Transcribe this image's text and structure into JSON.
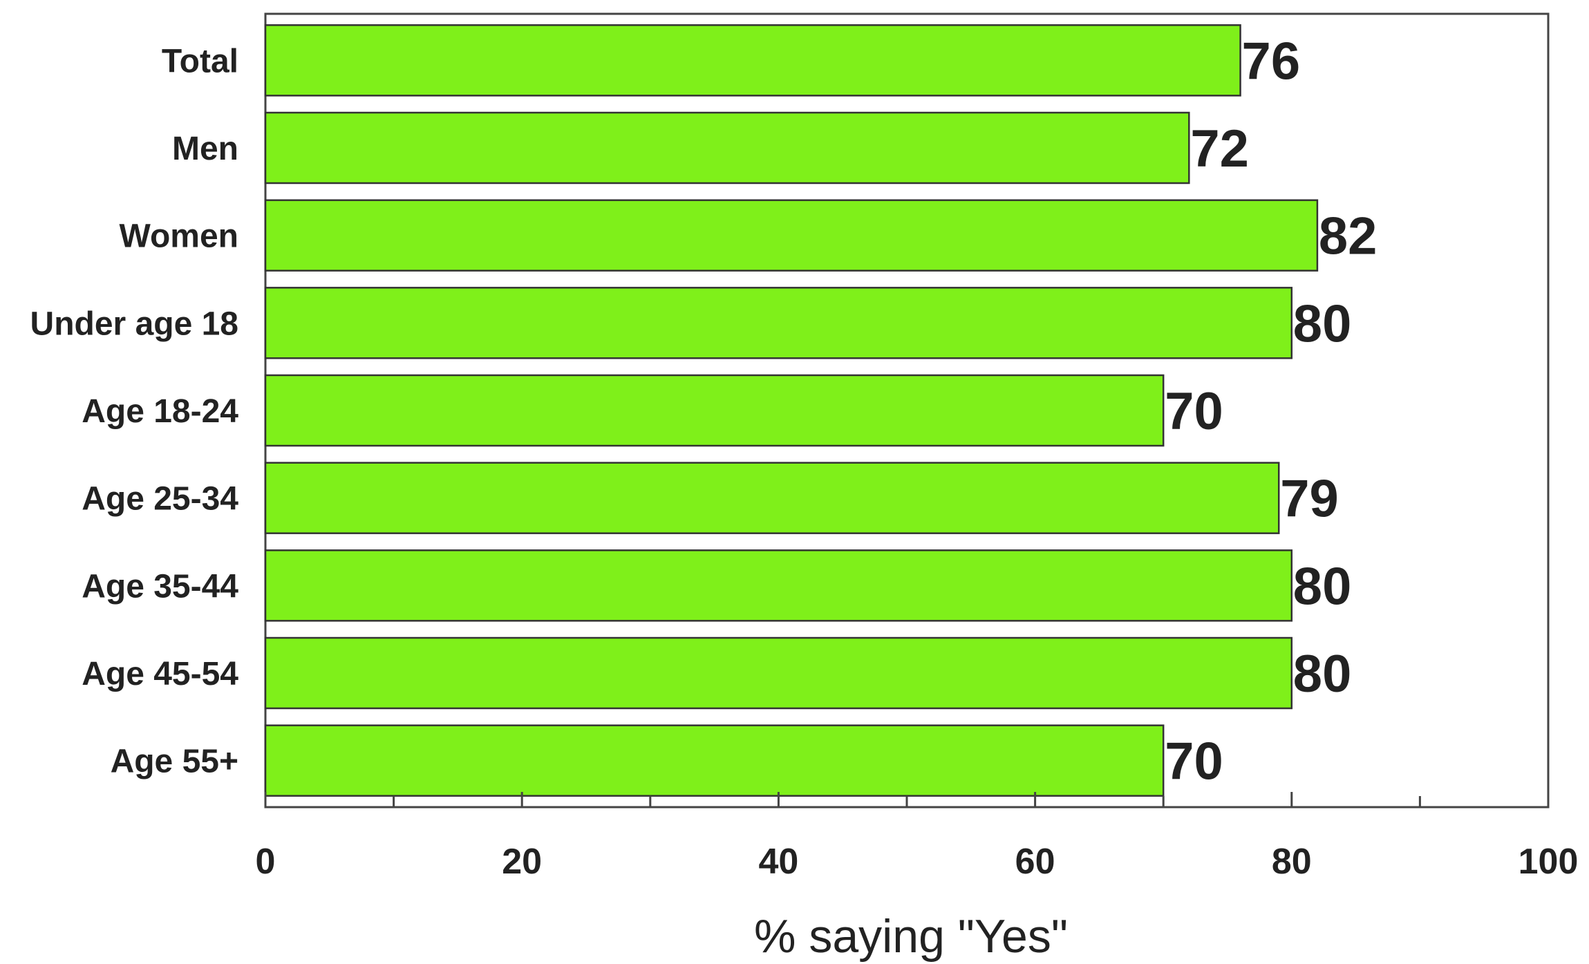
{
  "chart_data": {
    "type": "bar",
    "orientation": "horizontal",
    "categories": [
      "Total",
      "Men",
      "Women",
      "Under age 18",
      "Age 18-24",
      "Age 25-34",
      "Age 35-44",
      "Age 45-54",
      "Age 55+"
    ],
    "values": [
      76,
      72,
      82,
      80,
      70,
      79,
      80,
      80,
      70
    ],
    "data_labels": [
      "76",
      "72",
      "82",
      "80",
      "70",
      "79",
      "80",
      "80",
      "70"
    ],
    "xlabel": "% saying \"Yes\"",
    "ylabel": "",
    "title": "",
    "xlim": [
      0,
      100
    ],
    "xticks": [
      0,
      20,
      40,
      60,
      80,
      100
    ],
    "xtick_labels": [
      "0",
      "20",
      "40",
      "60",
      "80",
      "100"
    ],
    "minor_ticks": [
      10,
      30,
      50,
      70,
      90
    ],
    "grid": false,
    "legend": "none",
    "bar_color": "#7FF01A",
    "bar_edge_color": "#333333"
  }
}
